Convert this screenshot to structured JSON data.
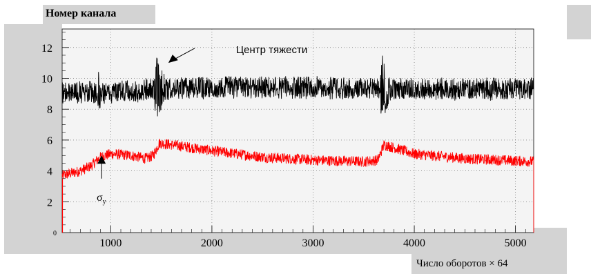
{
  "colors": {
    "frame": "#d3d3d3",
    "plot_bg": "#f4f4f4",
    "series1": "#000000",
    "series2": "#ff0000",
    "grid": "#555555"
  },
  "chart_data": {
    "type": "line",
    "ylabel": "Номер канала",
    "xlabel": "Число оборотов × 64",
    "xlim": [
      520,
      5180
    ],
    "ylim": [
      0,
      13.2
    ],
    "x_ticks": [
      1000,
      2000,
      3000,
      4000,
      5000
    ],
    "x_tick_labels": [
      "1000",
      "2000",
      "3000",
      "4000",
      "5000"
    ],
    "y_ticks": [
      2,
      4,
      6,
      8,
      10,
      12
    ],
    "y_tick_labels": [
      "2",
      "4",
      "6",
      "8",
      "10",
      "12"
    ],
    "grid": true,
    "series": [
      {
        "name": "Центр тяжести",
        "color": "#000000",
        "baseline": [
          [
            520,
            9.1
          ],
          [
            1000,
            9.1
          ],
          [
            1300,
            9.2
          ],
          [
            1450,
            9.4
          ],
          [
            1600,
            9.3
          ],
          [
            2000,
            9.4
          ],
          [
            2500,
            9.4
          ],
          [
            3000,
            9.4
          ],
          [
            3500,
            9.3
          ],
          [
            3700,
            9.3
          ],
          [
            4000,
            9.3
          ],
          [
            4500,
            9.3
          ],
          [
            5180,
            9.3
          ]
        ],
        "bursts": [
          {
            "x": 1450,
            "min": 6.2,
            "max": 12.5
          },
          {
            "x": 3680,
            "min": 6.5,
            "max": 11.8
          },
          {
            "x": 880,
            "min": 7.8,
            "max": 10.5
          }
        ]
      },
      {
        "name": "σy",
        "color": "#ff0000",
        "points": [
          [
            520,
            3.7
          ],
          [
            700,
            4.0
          ],
          [
            800,
            4.3
          ],
          [
            900,
            4.9
          ],
          [
            1000,
            5.1
          ],
          [
            1200,
            5.0
          ],
          [
            1350,
            4.8
          ],
          [
            1420,
            5.0
          ],
          [
            1480,
            5.8
          ],
          [
            1600,
            5.7
          ],
          [
            2000,
            5.3
          ],
          [
            2500,
            4.9
          ],
          [
            3000,
            4.7
          ],
          [
            3500,
            4.6
          ],
          [
            3640,
            4.7
          ],
          [
            3700,
            5.7
          ],
          [
            3800,
            5.5
          ],
          [
            4000,
            5.1
          ],
          [
            4500,
            4.8
          ],
          [
            5180,
            4.6
          ]
        ]
      }
    ],
    "annotations": [
      {
        "text": "Центр тяжести",
        "x": 1900,
        "y": 11.9,
        "arrow_to": [
          1570,
          11.0
        ]
      },
      {
        "text": "σy",
        "x": 900,
        "y": 2.5,
        "arrow_to": [
          910,
          5.0
        ]
      }
    ]
  }
}
